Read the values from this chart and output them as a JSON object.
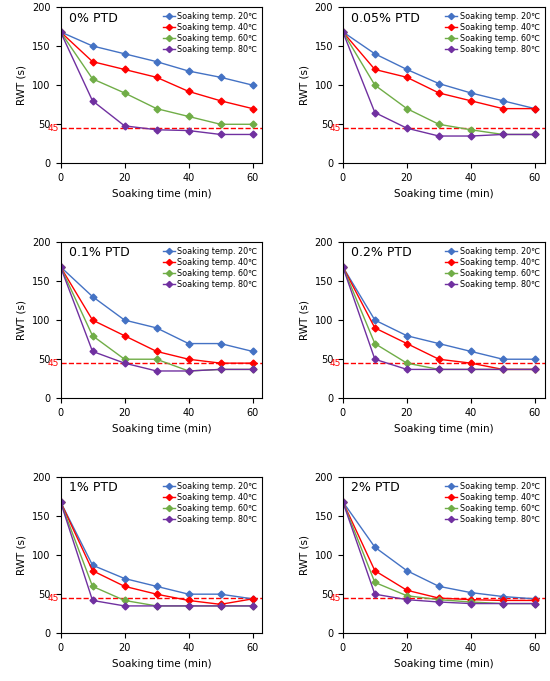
{
  "x": [
    0,
    10,
    20,
    30,
    40,
    50,
    60
  ],
  "panels": [
    {
      "title": "0% PTD",
      "series": [
        {
          "label": "Soaking temp. 20℃",
          "color": "#4472C4",
          "marker": "D",
          "values": [
            168,
            150,
            140,
            130,
            118,
            110,
            100
          ]
        },
        {
          "label": "Soaking temp. 40℃",
          "color": "#FF0000",
          "marker": "D",
          "values": [
            168,
            130,
            120,
            110,
            92,
            80,
            70
          ]
        },
        {
          "label": "Soaking temp. 60℃",
          "color": "#70AD47",
          "marker": "D",
          "values": [
            168,
            108,
            90,
            70,
            60,
            50,
            50
          ]
        },
        {
          "label": "Soaking temp. 80℃",
          "color": "#7030A0",
          "marker": "D",
          "values": [
            168,
            80,
            48,
            43,
            42,
            37,
            37
          ]
        }
      ]
    },
    {
      "title": "0.05% PTD",
      "series": [
        {
          "label": "Soaking temp. 20℃",
          "color": "#4472C4",
          "marker": "D",
          "values": [
            168,
            140,
            120,
            102,
            90,
            80,
            70
          ]
        },
        {
          "label": "Soaking temp. 40℃",
          "color": "#FF0000",
          "marker": "D",
          "values": [
            168,
            120,
            110,
            90,
            80,
            70,
            70
          ]
        },
        {
          "label": "Soaking temp. 60℃",
          "color": "#70AD47",
          "marker": "D",
          "values": [
            168,
            100,
            70,
            50,
            43,
            37,
            37
          ]
        },
        {
          "label": "Soaking temp. 80℃",
          "color": "#7030A0",
          "marker": "D",
          "values": [
            168,
            65,
            45,
            35,
            35,
            37,
            37
          ]
        }
      ]
    },
    {
      "title": "0.1% PTD",
      "series": [
        {
          "label": "Soaking temp. 20℃",
          "color": "#4472C4",
          "marker": "D",
          "values": [
            168,
            130,
            100,
            90,
            70,
            70,
            60
          ]
        },
        {
          "label": "Soaking temp. 40℃",
          "color": "#FF0000",
          "marker": "D",
          "values": [
            168,
            100,
            80,
            60,
            50,
            45,
            45
          ]
        },
        {
          "label": "Soaking temp. 60℃",
          "color": "#70AD47",
          "marker": "D",
          "values": [
            168,
            80,
            50,
            50,
            35,
            37,
            37
          ]
        },
        {
          "label": "Soaking temp. 80℃",
          "color": "#7030A0",
          "marker": "D",
          "values": [
            168,
            60,
            45,
            35,
            35,
            37,
            37
          ]
        }
      ]
    },
    {
      "title": "0.2% PTD",
      "series": [
        {
          "label": "Soaking temp. 20℃",
          "color": "#4472C4",
          "marker": "D",
          "values": [
            168,
            100,
            80,
            70,
            60,
            50,
            50
          ]
        },
        {
          "label": "Soaking temp. 40℃",
          "color": "#FF0000",
          "marker": "D",
          "values": [
            168,
            90,
            70,
            50,
            45,
            37,
            37
          ]
        },
        {
          "label": "Soaking temp. 60℃",
          "color": "#70AD47",
          "marker": "D",
          "values": [
            168,
            70,
            45,
            37,
            37,
            37,
            37
          ]
        },
        {
          "label": "Soaking temp. 80℃",
          "color": "#7030A0",
          "marker": "D",
          "values": [
            168,
            50,
            37,
            37,
            37,
            37,
            37
          ]
        }
      ]
    },
    {
      "title": "1% PTD",
      "series": [
        {
          "label": "Soaking temp. 20℃",
          "color": "#4472C4",
          "marker": "D",
          "values": [
            168,
            87,
            70,
            60,
            50,
            50,
            44
          ]
        },
        {
          "label": "Soaking temp. 40℃",
          "color": "#FF0000",
          "marker": "D",
          "values": [
            168,
            80,
            60,
            50,
            42,
            37,
            44
          ]
        },
        {
          "label": "Soaking temp. 60℃",
          "color": "#70AD47",
          "marker": "D",
          "values": [
            168,
            60,
            42,
            35,
            35,
            35,
            35
          ]
        },
        {
          "label": "Soaking temp. 80℃",
          "color": "#7030A0",
          "marker": "D",
          "values": [
            168,
            42,
            35,
            35,
            35,
            35,
            35
          ]
        }
      ]
    },
    {
      "title": "2% PTD",
      "series": [
        {
          "label": "Soaking temp. 20℃",
          "color": "#4472C4",
          "marker": "D",
          "values": [
            168,
            110,
            80,
            60,
            52,
            47,
            44
          ]
        },
        {
          "label": "Soaking temp. 40℃",
          "color": "#FF0000",
          "marker": "D",
          "values": [
            168,
            80,
            55,
            45,
            43,
            42,
            42
          ]
        },
        {
          "label": "Soaking temp. 60℃",
          "color": "#70AD47",
          "marker": "D",
          "values": [
            168,
            65,
            48,
            43,
            40,
            38,
            38
          ]
        },
        {
          "label": "Soaking temp. 80℃",
          "color": "#7030A0",
          "marker": "D",
          "values": [
            168,
            50,
            43,
            40,
            38,
            38,
            38
          ]
        }
      ]
    }
  ],
  "xlabel": "Soaking time (min)",
  "ylabel": "RWT (s)",
  "ylim": [
    0,
    200
  ],
  "yticks": [
    0,
    50,
    100,
    150,
    200
  ],
  "xticks": [
    0,
    20,
    40,
    60
  ],
  "hline_y": 45,
  "hline_color": "#FF0000",
  "hline_label": "45",
  "background_color": "#FFFFFF"
}
